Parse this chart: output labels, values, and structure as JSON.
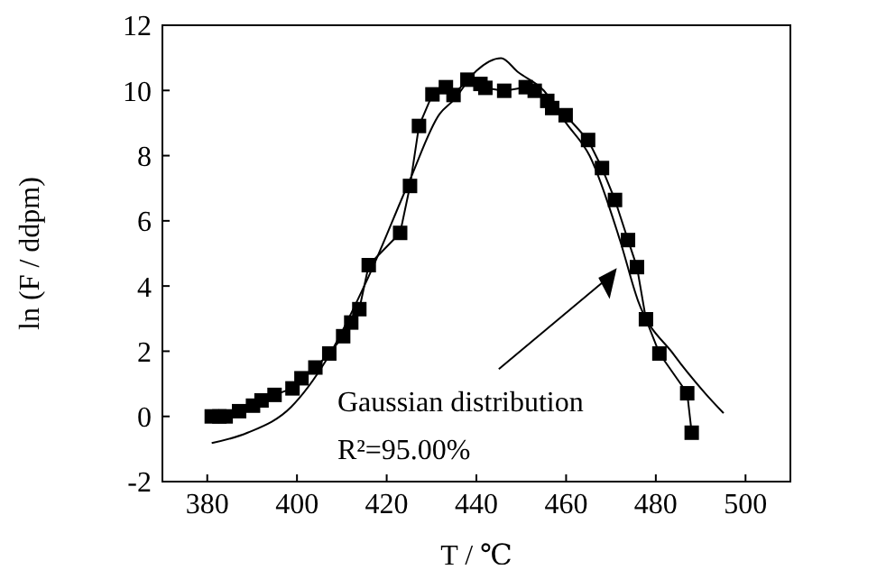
{
  "chart_data": {
    "type": "line",
    "xlabel": "T / ℃",
    "ylabel": "ln (F / ddpm)",
    "xlim": [
      370,
      510
    ],
    "xticks": [
      380,
      400,
      420,
      440,
      460,
      480,
      500
    ],
    "ylim": [
      -2,
      12
    ],
    "yticks": [
      -2,
      0,
      2,
      4,
      6,
      8,
      10,
      12
    ],
    "series": [
      {
        "marker": "square",
        "color": "#000000",
        "x": [
          381,
          382.7,
          384.1,
          387.1,
          390.2,
          392.1,
          395,
          399,
          401,
          404.1,
          407.2,
          410.3,
          412.1,
          413.9,
          416,
          423,
          425.2,
          427.2,
          430.2,
          433.2,
          434.9,
          438,
          440.9,
          442,
          446.2,
          451,
          453,
          455.8,
          456.9,
          459.9,
          464.9,
          468,
          470.9,
          473.8,
          475.8,
          477.8,
          480.8,
          487,
          488
        ],
        "values": [
          0,
          0,
          0,
          0.16,
          0.33,
          0.49,
          0.66,
          0.86,
          1.17,
          1.5,
          1.93,
          2.46,
          2.88,
          3.29,
          4.64,
          5.63,
          7.07,
          8.91,
          9.88,
          10.1,
          9.86,
          10.33,
          10.2,
          10.08,
          9.99,
          10.1,
          9.99,
          9.68,
          9.46,
          9.24,
          8.48,
          7.62,
          6.64,
          5.41,
          4.58,
          2.98,
          1.93,
          0.71,
          -0.5
        ]
      },
      {
        "marker": "none",
        "color": "#000000",
        "x": [
          381,
          389,
          398.7,
          406.5,
          416,
          425,
          431.8,
          434.9,
          440,
          445.5,
          449.3,
          455,
          460,
          465.3,
          472,
          476,
          484,
          491,
          495.1
        ],
        "values": [
          -0.82,
          -0.5,
          0.29,
          1.72,
          4.3,
          7.2,
          9.28,
          9.7,
          10.6,
          10.99,
          10.56,
          10,
          9,
          7.98,
          5.41,
          3.56,
          1.9,
          0.71,
          0.1
        ]
      }
    ],
    "annotations": [
      "Gaussian distribution",
      "R²=95.00%"
    ]
  }
}
